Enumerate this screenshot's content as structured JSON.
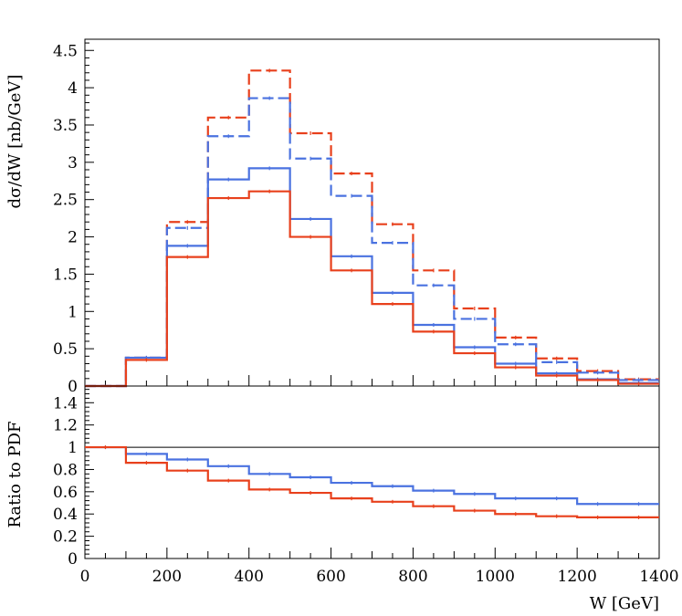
{
  "chart_data": [
    {
      "type": "line",
      "panel": "main",
      "title": "",
      "xlabel": "",
      "ylabel": "dσ/dW [nb/GeV]",
      "xlim": [
        0,
        1400
      ],
      "ylim": [
        0,
        4.65
      ],
      "yticks": [
        0,
        0.5,
        1,
        1.5,
        2,
        2.5,
        3,
        3.5,
        4,
        4.5
      ],
      "ytick_labels": [
        "0",
        "0.5",
        "1",
        "1.5",
        "2",
        "2.5",
        "3",
        "3.5",
        "4",
        "4.5"
      ],
      "grid": false,
      "legend": "none",
      "bin_edges": [
        0,
        100,
        200,
        300,
        400,
        500,
        600,
        700,
        800,
        900,
        1000,
        1100,
        1200,
        1300,
        1400
      ],
      "series": [
        {
          "color": "#e8401c",
          "style": "dashed",
          "values": [
            0,
            0.38,
            2.2,
            3.6,
            4.23,
            3.39,
            2.85,
            2.17,
            1.55,
            1.04,
            0.65,
            0.37,
            0.2,
            0.09
          ]
        },
        {
          "color": "#4a72e0",
          "style": "dashed",
          "values": [
            0,
            0.38,
            2.12,
            3.35,
            3.86,
            3.05,
            2.55,
            1.92,
            1.35,
            0.9,
            0.56,
            0.32,
            0.18,
            0.08
          ]
        },
        {
          "color": "#4a72e0",
          "style": "solid",
          "values": [
            0,
            0.38,
            1.88,
            2.77,
            2.92,
            2.24,
            1.74,
            1.25,
            0.82,
            0.52,
            0.3,
            0.17,
            0.09,
            0.04
          ]
        },
        {
          "color": "#e8401c",
          "style": "solid",
          "values": [
            0,
            0.35,
            1.73,
            2.52,
            2.61,
            2.0,
            1.55,
            1.1,
            0.73,
            0.44,
            0.25,
            0.14,
            0.08,
            0.03
          ]
        }
      ]
    },
    {
      "type": "line",
      "panel": "ratio",
      "title": "",
      "xlabel": "W [GeV]",
      "ylabel": "Ratio to PDF",
      "xlim": [
        0,
        1400
      ],
      "ylim": [
        0,
        1.55
      ],
      "reference_line": 1,
      "xticks": [
        0,
        200,
        400,
        600,
        800,
        1000,
        1200,
        1400
      ],
      "xtick_labels": [
        "0",
        "200",
        "400",
        "600",
        "800",
        "1000",
        "1200",
        "1400"
      ],
      "yticks": [
        0,
        0.2,
        0.4,
        0.6,
        0.8,
        1,
        1.2,
        1.4
      ],
      "ytick_labels": [
        "0",
        "0.2",
        "0.4",
        "0.6",
        "0.8",
        "1",
        "1.2",
        "1.4"
      ],
      "grid": false,
      "legend": "none",
      "bin_edges": [
        0,
        100,
        200,
        300,
        400,
        500,
        600,
        700,
        800,
        900,
        1000,
        1100,
        1200,
        1300,
        1400
      ],
      "series": [
        {
          "color": "#4a72e0",
          "style": "solid",
          "values": [
            1.0,
            0.94,
            0.89,
            0.83,
            0.76,
            0.73,
            0.68,
            0.65,
            0.61,
            0.58,
            0.54,
            0.54,
            0.49,
            0.49
          ]
        },
        {
          "color": "#e8401c",
          "style": "solid",
          "values": [
            1.0,
            0.86,
            0.79,
            0.7,
            0.62,
            0.59,
            0.54,
            0.51,
            0.47,
            0.43,
            0.4,
            0.38,
            0.37,
            0.37
          ]
        }
      ]
    }
  ]
}
